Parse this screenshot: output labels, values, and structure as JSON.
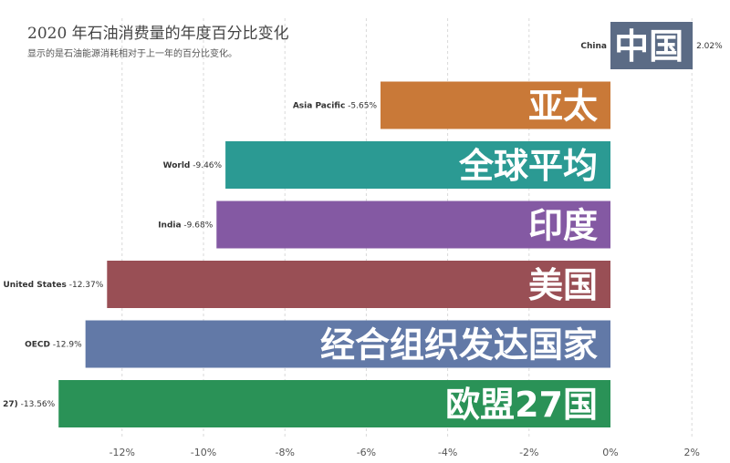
{
  "header": {
    "title": "2020 年石油消费量的年度百分比变化",
    "subtitle": "显示的是石油能源消耗相对于上一年的百分比变化。"
  },
  "chart_data": {
    "type": "bar",
    "orientation": "horizontal",
    "title": "2020 年石油消费量的年度百分比变化",
    "subtitle": "显示的是石油能源消耗相对于上一年的百分比变化。",
    "xlim": [
      -13.8,
      2.2
    ],
    "x_ticks": [
      -12,
      -10,
      -8,
      -6,
      -4,
      -2,
      0,
      2
    ],
    "x_tick_labels": [
      "-12%",
      "-10%",
      "-8%",
      "-6%",
      "-4%",
      "-2%",
      "0%",
      "2%"
    ],
    "grid": "vertical dashed",
    "bars": [
      {
        "category": "China",
        "value": 2.02,
        "value_label": "2.02%",
        "big_label": "中国",
        "color": "#5b6b85"
      },
      {
        "category": "Asia Pacific",
        "value": -5.65,
        "value_label": "-5.65%",
        "big_label": "亚太",
        "color": "#c97938"
      },
      {
        "category": "World",
        "value": -9.46,
        "value_label": "-9.46%",
        "big_label": "全球平均",
        "color": "#2b9a93"
      },
      {
        "category": "India",
        "value": -9.68,
        "value_label": "-9.68%",
        "big_label": "印度",
        "color": "#8459a3"
      },
      {
        "category": "United States",
        "value": -12.37,
        "value_label": "-12.37%",
        "big_label": "美国",
        "color": "#994f55"
      },
      {
        "category": "OECD",
        "value": -12.9,
        "value_label": "-12.9%",
        "big_label": "经合组织发达国家",
        "color": "#6279a7"
      },
      {
        "category": "27)",
        "value": -13.56,
        "value_label": "-13.56%",
        "big_label": "欧盟27国",
        "color": "#2a9257"
      }
    ]
  }
}
